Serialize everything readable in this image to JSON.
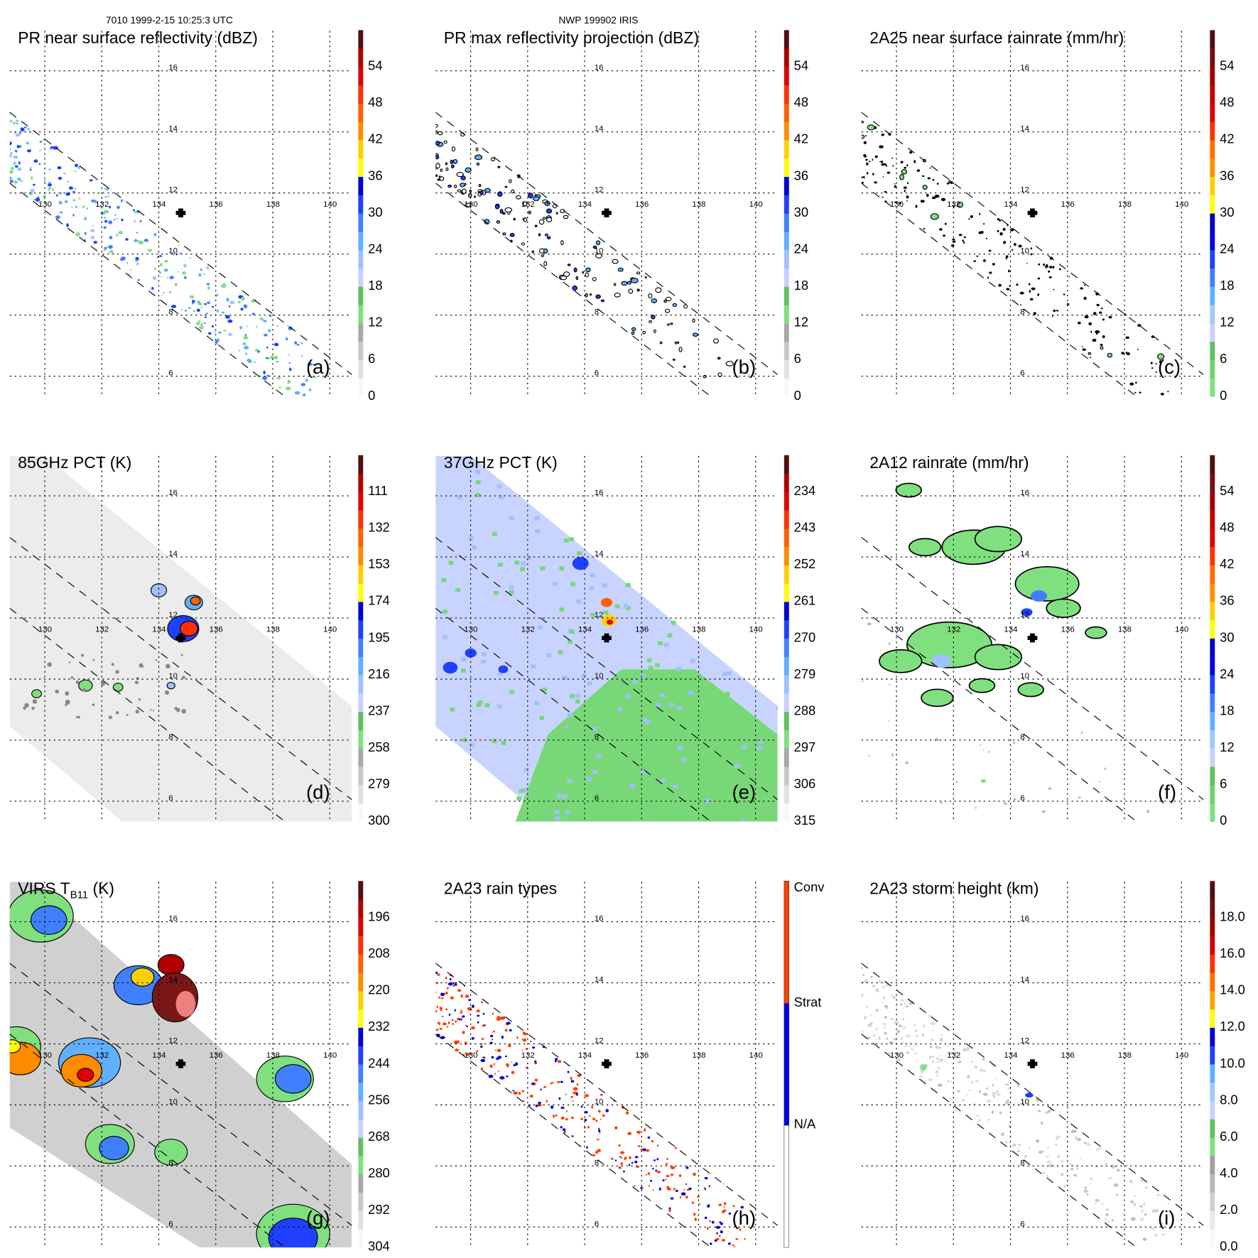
{
  "header": {
    "left": "7010 1999-2-15 10:25:3 UTC",
    "center": "NWP 199902 IRIS"
  },
  "map": {
    "lon_labels": [
      "130",
      "132",
      "134",
      "136",
      "138",
      "140"
    ],
    "lat_labels": [
      "16",
      "14",
      "12",
      "10",
      "8",
      "6"
    ]
  },
  "panels": [
    {
      "id": "a",
      "title": "PR near surface reflectivity (dBZ)",
      "label": "(a)",
      "style": "reflect",
      "ticks": [
        "0",
        "6",
        "12",
        "18",
        "24",
        "30",
        "36",
        "42",
        "48",
        "54"
      ],
      "colors": [
        "#f8f8f8",
        "#e0e0e0",
        "#c8c8c8",
        "#a8a8a8",
        "#80e080",
        "#60c060",
        "#c8d0ff",
        "#a0c0ff",
        "#60b0ff",
        "#4080ff",
        "#2040ff",
        "#0000d8",
        "#ffff00",
        "#ffd000",
        "#ff8c00",
        "#ff6000",
        "#ff3000",
        "#e00000",
        "#b00000",
        "#501010"
      ]
    },
    {
      "id": "b",
      "title": "PR max reflectivity projection (dBZ)",
      "label": "(b)",
      "style": "outline",
      "ticks": [
        "0",
        "6",
        "12",
        "18",
        "24",
        "30",
        "36",
        "42",
        "48",
        "54"
      ],
      "colors": [
        "#f8f8f8",
        "#e0e0e0",
        "#c8c8c8",
        "#a8a8a8",
        "#80e080",
        "#60c060",
        "#c8d0ff",
        "#a0c0ff",
        "#60b0ff",
        "#4080ff",
        "#2040ff",
        "#0000d8",
        "#ffff00",
        "#ffd000",
        "#ff8c00",
        "#ff6000",
        "#ff3000",
        "#e00000",
        "#b00000",
        "#501010"
      ]
    },
    {
      "id": "c",
      "title": "2A25 near surface rainrate (mm/hr)",
      "label": "(c)",
      "style": "dots",
      "ticks": [
        "0",
        "6",
        "12",
        "18",
        "24",
        "30",
        "36",
        "42",
        "48",
        "54"
      ],
      "colors": [
        "#80e080",
        "#70d070",
        "#60c060",
        "#c8d0ff",
        "#a0c8ff",
        "#60b0ff",
        "#4080ff",
        "#2040ff",
        "#0000e8",
        "#0000c8",
        "#ffff00",
        "#ffd000",
        "#ff9000",
        "#ff7000",
        "#ff3000",
        "#e00000",
        "#c00000",
        "#a00000",
        "#701010",
        "#501010"
      ]
    },
    {
      "id": "d",
      "title": "85GHz PCT (K)",
      "label": "(d)",
      "style": "pct85",
      "ticks": [
        "300",
        "279",
        "258",
        "237",
        "216",
        "195",
        "174",
        "153",
        "132",
        "111"
      ],
      "colors": [
        "#f8f8f8",
        "#e0e0e0",
        "#c8c8c8",
        "#a8a8a8",
        "#80e080",
        "#60c060",
        "#c8d0ff",
        "#a0c0ff",
        "#60b0ff",
        "#4080ff",
        "#2040ff",
        "#0000d8",
        "#ffff00",
        "#ffd000",
        "#ff8c00",
        "#ff6000",
        "#ff3000",
        "#e00000",
        "#b00000",
        "#501010"
      ]
    },
    {
      "id": "e",
      "title": "37GHz PCT (K)",
      "label": "(e)",
      "style": "pct37",
      "ticks": [
        "315",
        "306",
        "297",
        "288",
        "279",
        "270",
        "261",
        "252",
        "243",
        "234"
      ],
      "colors": [
        "#f8f8f8",
        "#e0e0e0",
        "#c8c8c8",
        "#a8a8a8",
        "#80e080",
        "#60c060",
        "#c8d0ff",
        "#a0c0ff",
        "#60b0ff",
        "#4080ff",
        "#2040ff",
        "#0000d8",
        "#ffff00",
        "#ffd000",
        "#ff8c00",
        "#ff6000",
        "#ff3000",
        "#e00000",
        "#b00000",
        "#501010"
      ]
    },
    {
      "id": "f",
      "title": "2A12 rainrate (mm/hr)",
      "label": "(f)",
      "style": "tmi",
      "ticks": [
        "0",
        "6",
        "12",
        "18",
        "24",
        "30",
        "36",
        "42",
        "48",
        "54"
      ],
      "colors": [
        "#80e080",
        "#70d070",
        "#60c060",
        "#c8d0ff",
        "#a0c8ff",
        "#60b0ff",
        "#4080ff",
        "#2040ff",
        "#0000e8",
        "#0000c8",
        "#ffff00",
        "#ffd000",
        "#ff9000",
        "#ff7000",
        "#ff3000",
        "#e00000",
        "#c00000",
        "#a00000",
        "#701010",
        "#501010"
      ]
    },
    {
      "id": "g",
      "title": "VIRS T",
      "title_sub": "B11",
      "title_end": " (K)",
      "label": "(g)",
      "style": "virs",
      "ticks": [
        "304",
        "292",
        "280",
        "268",
        "256",
        "244",
        "232",
        "220",
        "208",
        "196"
      ],
      "colors": [
        "#f8f8f8",
        "#e0e0e0",
        "#c8c8c8",
        "#a8a8a8",
        "#80e080",
        "#60c060",
        "#c8d0ff",
        "#a0c0ff",
        "#60b0ff",
        "#4080ff",
        "#2040ff",
        "#0000d8",
        "#ffff00",
        "#ffd000",
        "#ff8c00",
        "#ff6000",
        "#ff3000",
        "#e00000",
        "#b00000",
        "#501010"
      ]
    },
    {
      "id": "h",
      "title": "2A23 rain types",
      "label": "(h)",
      "style": "types",
      "ticks": [
        "N/A",
        "Strat",
        "Conv"
      ],
      "colors": [
        "#ffffff",
        "#0000e8",
        "#ff4000"
      ]
    },
    {
      "id": "i",
      "title": "2A23 storm height (km)",
      "label": "(i)",
      "style": "height",
      "ticks": [
        "0.0",
        "2.0",
        "4.0",
        "6.0",
        "8.0",
        "10.0",
        "12.0",
        "14.0",
        "16.0",
        "18.0"
      ],
      "colors": [
        "#f8f8f8",
        "#e8e8e8",
        "#d0d0d0",
        "#b8b8b8",
        "#a0a0a0",
        "#80e080",
        "#60c060",
        "#c8d0ff",
        "#a0c8ff",
        "#60b0ff",
        "#2040ff",
        "#0000d8",
        "#ffff00",
        "#ffa000",
        "#ff7000",
        "#ff3000",
        "#d00000",
        "#a00000",
        "#701010",
        "#501010"
      ]
    }
  ]
}
